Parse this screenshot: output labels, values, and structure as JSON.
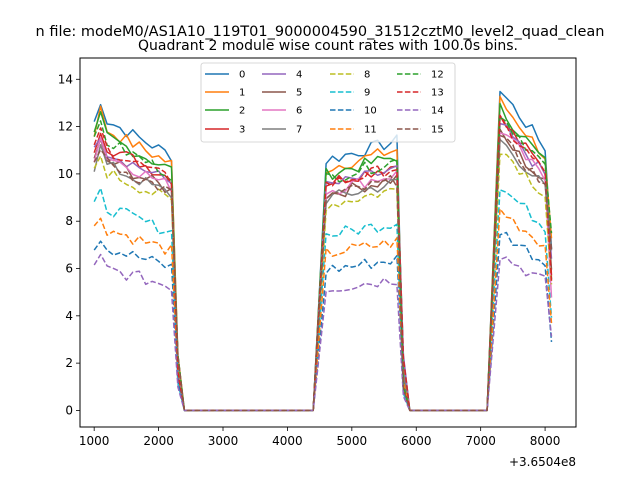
{
  "figure": {
    "suptitle": "n file: modeM0/AS1A10_119T01_9000004590_31512cztM0_level2_quad_clean",
    "offset_label": "+3.6504e8"
  },
  "chart_data": {
    "type": "line",
    "title": "Quadrant 2 module wise count rates with 100.0s bins.",
    "xlabel": "",
    "ylabel": "",
    "xlim": [
      780,
      8480
    ],
    "ylim": [
      -0.7,
      14.9
    ],
    "xticks": [
      1000,
      2000,
      3000,
      4000,
      5000,
      6000,
      7000,
      8000
    ],
    "yticks": [
      0,
      2,
      4,
      6,
      8,
      10,
      12,
      14
    ],
    "xtick_labels": [
      "1000",
      "2000",
      "3000",
      "4000",
      "5000",
      "6000",
      "7000",
      "8000"
    ],
    "ytick_labels": [
      "0",
      "2",
      "4",
      "6",
      "8",
      "10",
      "12",
      "14"
    ],
    "grid": false,
    "legend": {
      "position": "top-center",
      "columns": 4
    },
    "segments": [
      {
        "x_start": 1000,
        "x_end": 2200,
        "points": 13
      },
      {
        "x_start": 4600,
        "x_end": 5700,
        "points": 12
      },
      {
        "x_start": 7300,
        "x_end": 8000,
        "points": 8
      }
    ],
    "gap_points": [
      2300,
      2400,
      4400,
      4500,
      5800,
      5900,
      7100,
      7200
    ],
    "series": [
      {
        "name": "0",
        "color": "#1f77b4",
        "style": "solid",
        "base": 12.3,
        "drop": 8100
      },
      {
        "name": "1",
        "color": "#ff7f0e",
        "style": "solid",
        "base": 11.9,
        "drop": 8100
      },
      {
        "name": "2",
        "color": "#2ca02c",
        "style": "solid",
        "base": 11.6,
        "drop": 8100
      },
      {
        "name": "3",
        "color": "#d62728",
        "style": "solid",
        "base": 11.2,
        "drop": 8100
      },
      {
        "name": "4",
        "color": "#9467bd",
        "style": "solid",
        "base": 11.0,
        "drop": 8100
      },
      {
        "name": "5",
        "color": "#8c564b",
        "style": "solid",
        "base": 10.6,
        "drop": 8100
      },
      {
        "name": "6",
        "color": "#e377c2",
        "style": "solid",
        "base": 10.8,
        "drop": 8100
      },
      {
        "name": "7",
        "color": "#7f7f7f",
        "style": "solid",
        "base": 10.4,
        "drop": 8100
      },
      {
        "name": "8",
        "color": "#bcbd22",
        "style": "dashed",
        "base": 10.1,
        "drop": 8100
      },
      {
        "name": "9",
        "color": "#17becf",
        "style": "dashed",
        "base": 8.6,
        "drop": 8100
      },
      {
        "name": "10",
        "color": "#1f77b4",
        "style": "dashed",
        "base": 6.9,
        "drop": 8100
      },
      {
        "name": "11",
        "color": "#ff7f0e",
        "style": "dashed",
        "base": 7.7,
        "drop": 8100
      },
      {
        "name": "12",
        "color": "#2ca02c",
        "style": "dashed",
        "base": 11.4,
        "drop": 8100
      },
      {
        "name": "13",
        "color": "#d62728",
        "style": "dashed",
        "base": 11.1,
        "drop": 8100
      },
      {
        "name": "14",
        "color": "#9467bd",
        "style": "dashed",
        "base": 6.0,
        "drop": 8100
      },
      {
        "name": "15",
        "color": "#8c564b",
        "style": "dashed",
        "base": 10.5,
        "drop": 8100
      }
    ]
  }
}
